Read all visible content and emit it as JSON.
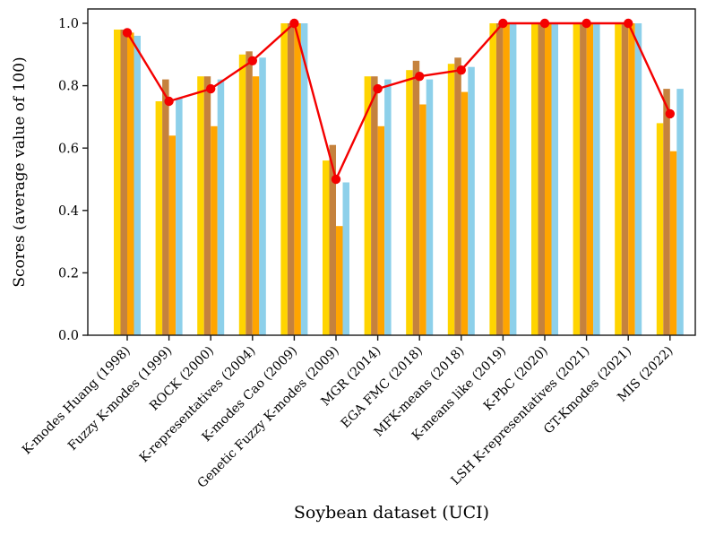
{
  "figure": {
    "background": "#ffffff"
  },
  "chart_data": {
    "type": "bar",
    "title": "",
    "xlabel": "Soybean dataset (UCI)",
    "ylabel": "Scores (average value of 100)",
    "ylim": [
      0.0,
      1.0
    ],
    "yticks": [
      0.0,
      0.2,
      0.4,
      0.6,
      0.8,
      1.0
    ],
    "ytick_labels": [
      "0.0",
      "0.2",
      "0.4",
      "0.6",
      "0.8",
      "1.0"
    ],
    "grid": false,
    "legend_position": "none",
    "categories": [
      "K-modes Huang (1998)",
      "Fuzzy K-modes (1999)",
      "ROCK (2000)",
      "K-representatives (2004)",
      "K-modes Cao (2009)",
      "Genetic Fuzzy K-modes (2009)",
      "MGR (2014)",
      "EGA FMC (2018)",
      "MFK-means (2018)",
      "K-means like (2019)",
      "K-PbC (2020)",
      "LSH K-representatives (2021)",
      "GT-Kmodes (2021)",
      "MIS (2022)"
    ],
    "series": [
      {
        "name": "gold-bars",
        "color": "#ffd400",
        "values": [
          0.98,
          0.75,
          0.83,
          0.9,
          1.0,
          0.56,
          0.83,
          0.85,
          0.87,
          1.0,
          1.0,
          1.0,
          1.0,
          0.68
        ]
      },
      {
        "name": "brown-bars",
        "color": "#c5823d",
        "values": [
          0.98,
          0.82,
          0.83,
          0.91,
          1.0,
          0.61,
          0.83,
          0.88,
          0.89,
          1.0,
          1.0,
          1.0,
          1.0,
          0.79
        ]
      },
      {
        "name": "orange-bars",
        "color": "#ffa500",
        "values": [
          0.97,
          0.64,
          0.67,
          0.83,
          1.0,
          0.35,
          0.67,
          0.74,
          0.78,
          1.0,
          1.0,
          1.0,
          1.0,
          0.59
        ]
      },
      {
        "name": "skyblue-bars",
        "color": "#8dd0ea",
        "values": [
          0.96,
          0.76,
          0.82,
          0.89,
          1.0,
          0.49,
          0.82,
          0.82,
          0.86,
          1.0,
          1.0,
          1.0,
          1.0,
          0.79
        ]
      }
    ],
    "line_series": {
      "name": "red-average-line",
      "color": "#f40000",
      "marker": "circle",
      "values": [
        0.97,
        0.75,
        0.79,
        0.88,
        1.0,
        0.5,
        0.79,
        0.83,
        0.85,
        1.0,
        1.0,
        1.0,
        1.0,
        0.71
      ]
    },
    "axis_color": "#1a1a1a"
  }
}
